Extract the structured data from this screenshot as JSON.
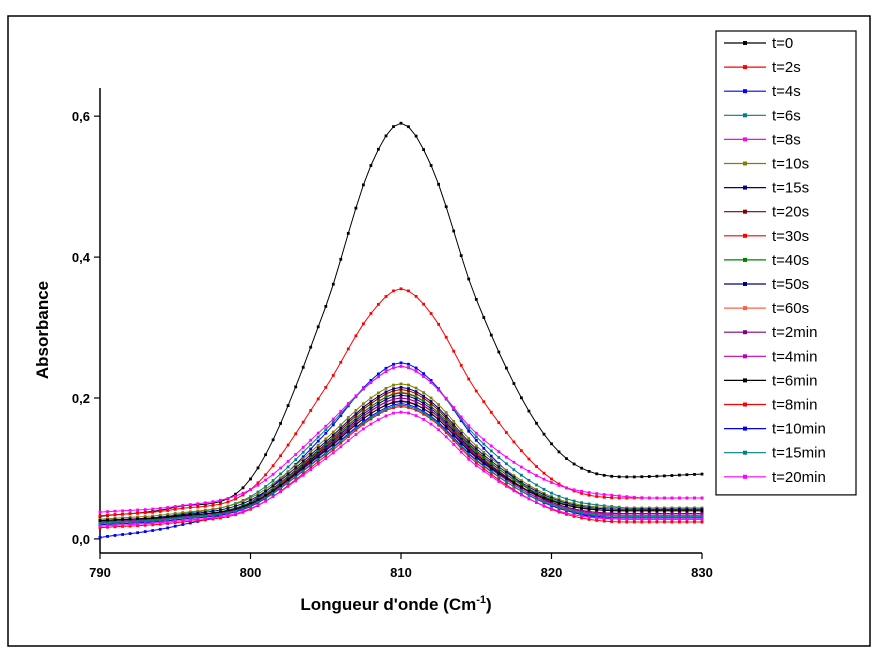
{
  "chart_data": {
    "type": "line",
    "title": "",
    "xlabel": "Longueur d'onde (Cm",
    "xlabel_sup": "-1",
    "xlabel_close": ")",
    "ylabel": "Absorbance",
    "xlim": [
      790,
      830
    ],
    "ylim": [
      -0.02,
      0.64
    ],
    "xticks": [
      790,
      800,
      810,
      820,
      830
    ],
    "yticks": [
      0.0,
      0.2,
      0.4,
      0.6
    ],
    "ytick_labels": [
      "0,0",
      "0,2",
      "0,4",
      "0,6"
    ],
    "legend_position": "top-right",
    "grid": false,
    "x": [
      790,
      795,
      800,
      805,
      808,
      810,
      812,
      815,
      820,
      825,
      830
    ],
    "series": [
      {
        "name": "t=0",
        "color": "#000000",
        "values": [
          0.032,
          0.045,
          0.085,
          0.33,
          0.53,
          0.59,
          0.53,
          0.34,
          0.135,
          0.088,
          0.092
        ]
      },
      {
        "name": "t=2s",
        "color": "#ff0000",
        "values": [
          0.033,
          0.042,
          0.07,
          0.215,
          0.32,
          0.355,
          0.32,
          0.21,
          0.085,
          0.058,
          0.058
        ]
      },
      {
        "name": "t=4s",
        "color": "#0000ff",
        "values": [
          0.002,
          0.018,
          0.052,
          0.15,
          0.225,
          0.25,
          0.225,
          0.14,
          0.05,
          0.028,
          0.028
        ]
      },
      {
        "name": "t=6s",
        "color": "#008080",
        "values": [
          0.025,
          0.034,
          0.06,
          0.155,
          0.222,
          0.245,
          0.222,
          0.145,
          0.065,
          0.044,
          0.042
        ]
      },
      {
        "name": "t=8s",
        "color": "#ff00ff",
        "values": [
          0.038,
          0.046,
          0.07,
          0.16,
          0.222,
          0.245,
          0.222,
          0.15,
          0.08,
          0.06,
          0.058
        ]
      },
      {
        "name": "t=10s",
        "color": "#808000",
        "values": [
          0.028,
          0.036,
          0.058,
          0.142,
          0.2,
          0.22,
          0.2,
          0.132,
          0.06,
          0.044,
          0.044
        ]
      },
      {
        "name": "t=15s",
        "color": "#000080",
        "values": [
          0.026,
          0.033,
          0.055,
          0.138,
          0.195,
          0.215,
          0.195,
          0.128,
          0.058,
          0.042,
          0.042
        ]
      },
      {
        "name": "t=20s",
        "color": "#800000",
        "values": [
          0.024,
          0.031,
          0.052,
          0.135,
          0.192,
          0.212,
          0.192,
          0.125,
          0.055,
          0.04,
          0.04
        ]
      },
      {
        "name": "t=30s",
        "color": "#ff0000",
        "values": [
          0.022,
          0.029,
          0.05,
          0.132,
          0.188,
          0.208,
          0.188,
          0.122,
          0.052,
          0.036,
          0.036
        ]
      },
      {
        "name": "t=40s",
        "color": "#008000",
        "values": [
          0.024,
          0.031,
          0.052,
          0.133,
          0.188,
          0.207,
          0.188,
          0.124,
          0.056,
          0.04,
          0.04
        ]
      },
      {
        "name": "t=50s",
        "color": "#000080",
        "values": [
          0.022,
          0.029,
          0.049,
          0.13,
          0.185,
          0.204,
          0.185,
          0.12,
          0.052,
          0.036,
          0.036
        ]
      },
      {
        "name": "t=60s",
        "color": "#ff6040",
        "values": [
          0.02,
          0.027,
          0.047,
          0.127,
          0.181,
          0.2,
          0.181,
          0.117,
          0.049,
          0.033,
          0.033
        ]
      },
      {
        "name": "t=2min",
        "color": "#800080",
        "values": [
          0.026,
          0.032,
          0.05,
          0.128,
          0.182,
          0.2,
          0.182,
          0.118,
          0.052,
          0.036,
          0.036
        ]
      },
      {
        "name": "t=4min",
        "color": "#c000c0",
        "values": [
          0.024,
          0.03,
          0.048,
          0.125,
          0.178,
          0.196,
          0.178,
          0.115,
          0.05,
          0.034,
          0.034
        ]
      },
      {
        "name": "t=6min",
        "color": "#000000",
        "values": [
          0.026,
          0.032,
          0.05,
          0.126,
          0.178,
          0.195,
          0.178,
          0.116,
          0.054,
          0.04,
          0.04
        ]
      },
      {
        "name": "t=8min",
        "color": "#ff0000",
        "values": [
          0.016,
          0.023,
          0.042,
          0.118,
          0.17,
          0.188,
          0.17,
          0.108,
          0.042,
          0.024,
          0.024
        ]
      },
      {
        "name": "t=10min",
        "color": "#0000ff",
        "values": [
          0.02,
          0.027,
          0.046,
          0.122,
          0.174,
          0.192,
          0.174,
          0.112,
          0.047,
          0.03,
          0.03
        ]
      },
      {
        "name": "t=15min",
        "color": "#008080",
        "values": [
          0.022,
          0.029,
          0.047,
          0.121,
          0.172,
          0.19,
          0.172,
          0.111,
          0.048,
          0.032,
          0.032
        ]
      },
      {
        "name": "t=20min",
        "color": "#ff00ff",
        "values": [
          0.018,
          0.025,
          0.043,
          0.114,
          0.163,
          0.18,
          0.163,
          0.104,
          0.043,
          0.028,
          0.028
        ]
      }
    ]
  }
}
